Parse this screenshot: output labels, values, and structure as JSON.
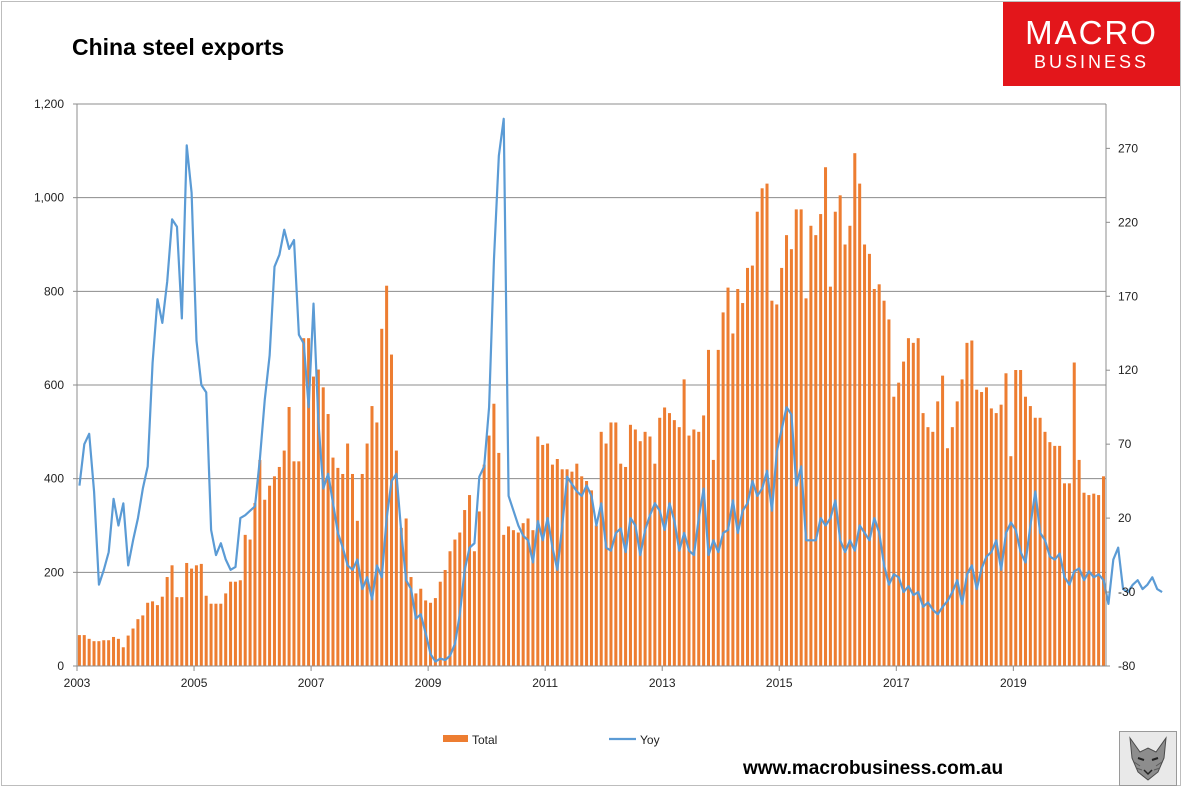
{
  "chart_data": {
    "type": "bar+line",
    "title": "China steel exports",
    "y_left": {
      "min": 0,
      "max": 1200,
      "ticks": [
        "0",
        "200",
        "400",
        "600",
        "800",
        "1,000",
        "1,200"
      ],
      "tick_values": [
        0,
        200,
        400,
        600,
        800,
        1000,
        1200
      ]
    },
    "y_right": {
      "min": -80,
      "max": 300,
      "ticks": [
        "-80",
        "-30",
        "20",
        "70",
        "120",
        "170",
        "220",
        "270"
      ],
      "tick_values": [
        -80,
        -30,
        20,
        70,
        120,
        170,
        220,
        270
      ]
    },
    "x_ticks": [
      "2003",
      "2005",
      "2007",
      "2009",
      "2011",
      "2013",
      "2015",
      "2017",
      "2019"
    ],
    "x_start_year": 2003,
    "grid": "horizontal",
    "legend": {
      "position": "bottom",
      "bar_label": "Total",
      "line_label": "Yoy"
    },
    "colors": {
      "bar": "#ed7d31",
      "line": "#5b9bd5",
      "grid": "#8c8c8c"
    },
    "series": [
      {
        "name": "Total",
        "type": "bar",
        "axis": "left",
        "values": [
          66,
          66,
          58,
          53,
          53,
          55,
          55,
          62,
          58,
          40,
          65,
          80,
          100,
          108,
          135,
          138,
          130,
          148,
          190,
          215,
          147,
          147,
          220,
          208,
          215,
          218,
          150,
          133,
          133,
          133,
          155,
          180,
          180,
          183,
          280,
          270,
          348,
          440,
          355,
          385,
          405,
          425,
          460,
          553,
          437,
          437,
          700,
          700,
          618,
          633,
          595,
          538,
          445,
          423,
          410,
          475,
          410,
          310,
          410,
          475,
          555,
          520,
          720,
          812,
          665,
          460,
          295,
          315,
          190,
          155,
          165,
          140,
          135,
          145,
          180,
          205,
          245,
          270,
          285,
          333,
          365,
          245,
          330,
          430,
          492,
          560,
          455,
          280,
          298,
          290,
          285,
          305,
          315,
          290,
          490,
          472,
          475,
          430,
          442,
          420,
          420,
          415,
          432,
          405,
          395,
          375,
          300,
          500,
          475,
          520,
          520,
          432,
          425,
          515,
          505,
          480,
          500,
          490,
          432,
          530,
          552,
          540,
          525,
          510,
          612,
          492,
          505,
          500,
          535,
          675,
          440,
          675,
          755,
          808,
          710,
          805,
          775,
          850,
          855,
          970,
          1020,
          1030,
          780,
          772,
          850,
          920,
          890,
          975,
          975,
          785,
          940,
          920,
          965,
          1065,
          810,
          970,
          1005,
          900,
          940,
          1095,
          1030,
          900,
          880,
          805,
          815,
          780,
          740,
          575,
          605,
          650,
          700,
          690,
          700,
          540,
          510,
          500,
          565,
          620,
          465,
          510,
          565,
          612,
          690,
          695,
          590,
          585,
          595,
          550,
          540,
          558,
          625,
          448,
          632,
          632,
          575,
          555,
          530,
          530,
          500,
          478,
          470,
          470,
          390,
          390,
          648,
          440,
          370,
          365,
          368,
          365,
          405
        ]
      },
      {
        "name": "Yoy",
        "type": "line",
        "axis": "right",
        "values": [
          42,
          70,
          77,
          38,
          -25,
          -15,
          -3,
          33,
          15,
          30,
          -12,
          5,
          20,
          40,
          55,
          125,
          168,
          152,
          180,
          222,
          217,
          155,
          272,
          240,
          140,
          110,
          105,
          12,
          -5,
          3,
          -8,
          -15,
          -13,
          20,
          22,
          25,
          28,
          60,
          100,
          130,
          190,
          198,
          215,
          202,
          208,
          144,
          138,
          95,
          165,
          85,
          40,
          50,
          30,
          10,
          0,
          -12,
          -15,
          -8,
          -28,
          -20,
          -35,
          -12,
          -20,
          20,
          45,
          50,
          10,
          -22,
          -28,
          -48,
          -45,
          -58,
          -72,
          -77,
          -75,
          -76,
          -73,
          -65,
          -45,
          -15,
          0,
          3,
          48,
          55,
          95,
          195,
          265,
          290,
          35,
          25,
          15,
          8,
          5,
          -10,
          18,
          5,
          20,
          0,
          -15,
          15,
          48,
          43,
          38,
          35,
          42,
          35,
          15,
          30,
          0,
          -2,
          10,
          13,
          -3,
          20,
          15,
          -5,
          12,
          22,
          30,
          25,
          12,
          30,
          18,
          -2,
          10,
          -2,
          -5,
          20,
          40,
          -5,
          5,
          -3,
          10,
          12,
          32,
          10,
          25,
          30,
          45,
          35,
          40,
          52,
          25,
          65,
          80,
          95,
          90,
          42,
          55,
          5,
          5,
          5,
          20,
          15,
          20,
          32,
          5,
          -3,
          5,
          -2,
          15,
          10,
          5,
          20,
          10,
          -12,
          -25,
          -18,
          -20,
          -30,
          -26,
          -32,
          -30,
          -40,
          -37,
          -42,
          -45,
          -40,
          -36,
          -30,
          -22,
          -38,
          -18,
          -12,
          -28,
          -14,
          -6,
          -3,
          5,
          -15,
          10,
          17,
          12,
          -3,
          -10,
          15,
          38,
          10,
          5,
          -6,
          -8,
          -4,
          -20,
          -25,
          -16,
          -14,
          -22,
          -16,
          -20,
          -18,
          -22,
          -38,
          -8,
          0,
          -28,
          -30,
          -25,
          -22,
          -28,
          -25,
          -20,
          -28,
          -30
        ]
      }
    ]
  },
  "branding": {
    "logo_line1": "MACRO",
    "logo_line2": "BUSINESS",
    "website": "www.macrobusiness.com.au",
    "logo_bg": "#e3161b",
    "mascot_icon": "wolf-icon"
  }
}
